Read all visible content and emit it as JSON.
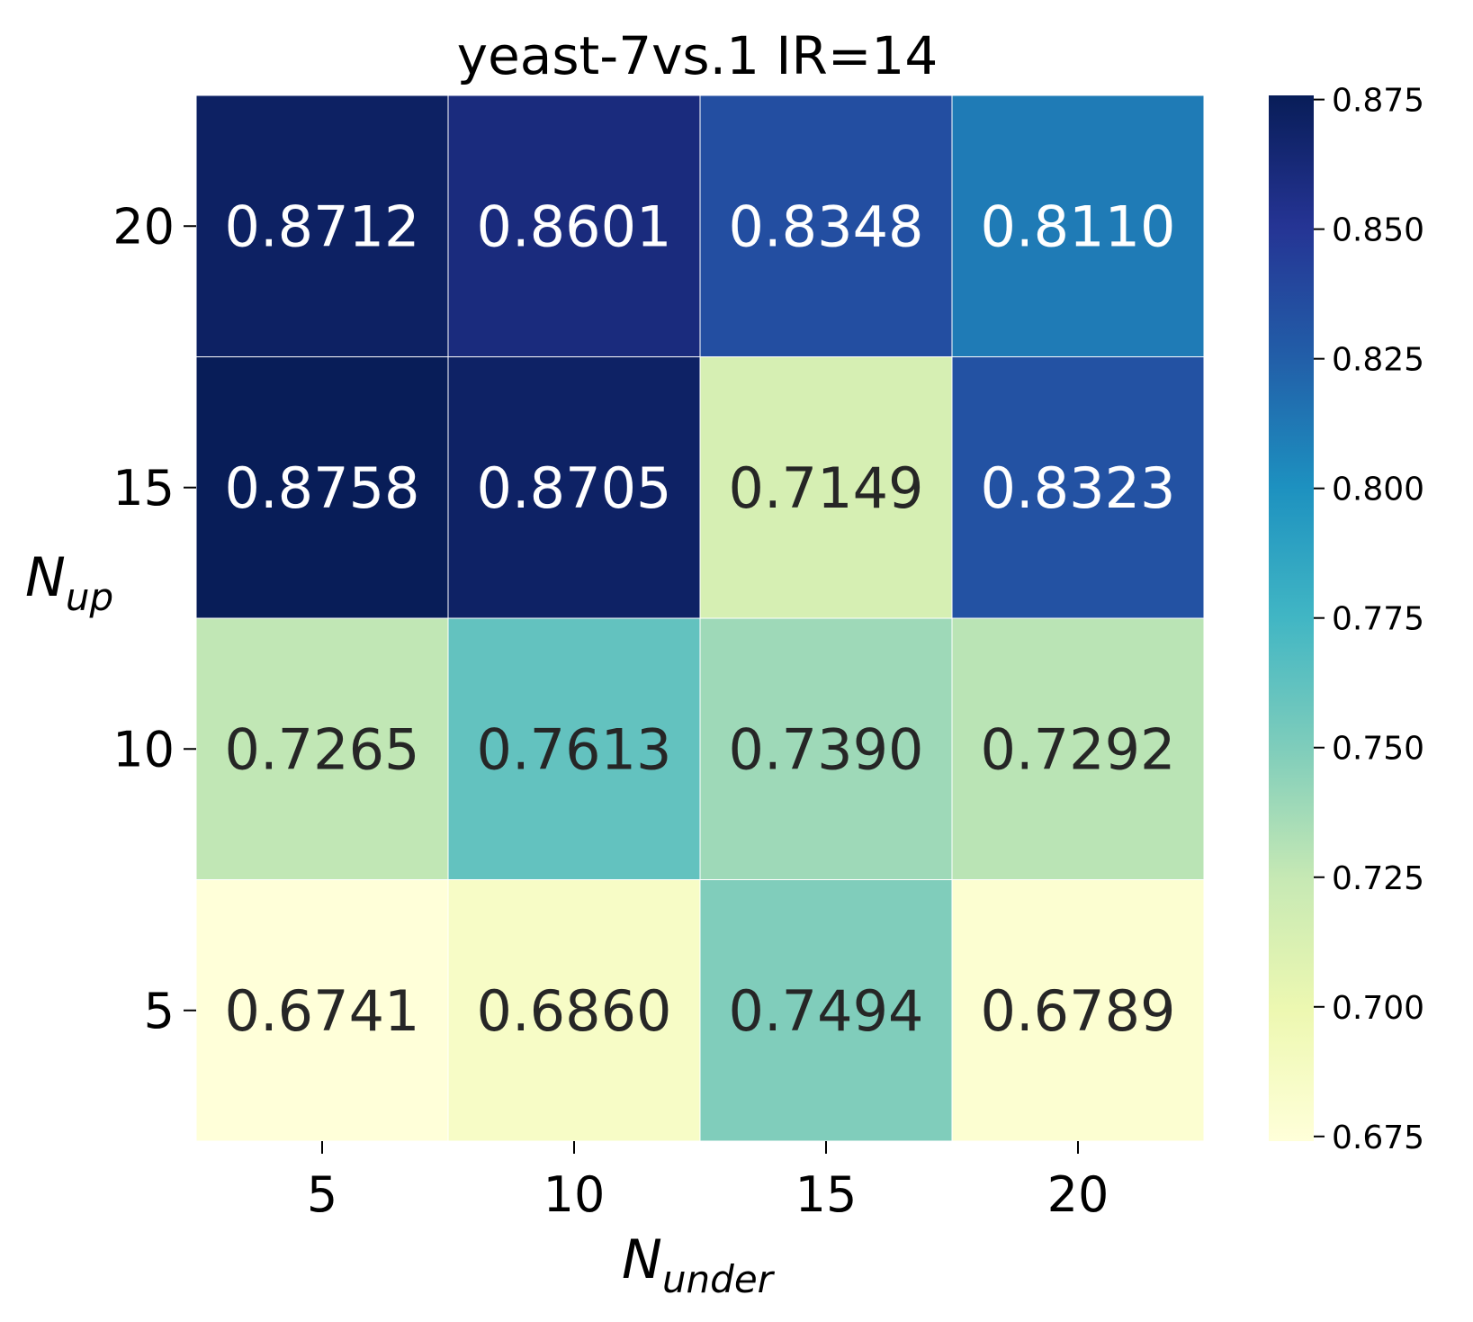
{
  "chart_data": {
    "type": "heatmap",
    "title": "yeast-7vs.1 IR=14",
    "xlabel": {
      "base": "N",
      "sub": "under"
    },
    "ylabel": {
      "base": "N",
      "sub": "up"
    },
    "x_categories": [
      "5",
      "10",
      "15",
      "20"
    ],
    "y_categories_top_to_bottom": [
      "20",
      "15",
      "10",
      "5"
    ],
    "values": [
      [
        0.8712,
        0.8601,
        0.8348,
        0.811
      ],
      [
        0.8758,
        0.8705,
        0.7149,
        0.8323
      ],
      [
        0.7265,
        0.7613,
        0.739,
        0.7292
      ],
      [
        0.6741,
        0.686,
        0.7494,
        0.6789
      ]
    ],
    "value_format_decimals": 4,
    "colormap": "YlGnBu",
    "colorbar": {
      "min": 0.6741,
      "max": 0.8758,
      "ticks": [
        "0.675",
        "0.700",
        "0.725",
        "0.750",
        "0.775",
        "0.800",
        "0.825",
        "0.850",
        "0.875"
      ]
    },
    "grid": true,
    "legend": "colorbar-right"
  },
  "colors": {
    "gradient_stops": [
      "#ffffd9",
      "#edf8b1",
      "#c7e9b4",
      "#7fcdbb",
      "#41b6c4",
      "#1d91c0",
      "#225ea8",
      "#253494",
      "#081d58"
    ],
    "text_light": "#ffffff",
    "text_dark": "#262626"
  }
}
